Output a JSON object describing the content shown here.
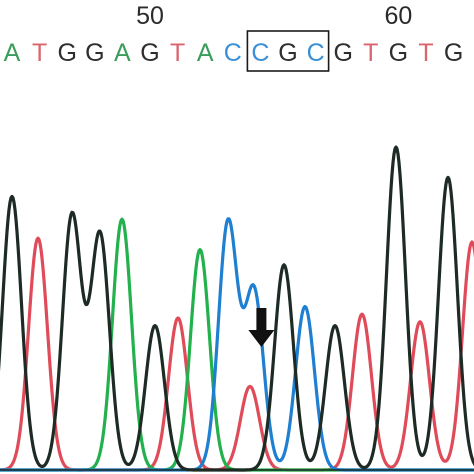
{
  "chart_data": {
    "type": "line",
    "position_labels": [
      {
        "label": "50",
        "base_index": 5
      },
      {
        "label": "60",
        "base_index": 14
      }
    ],
    "bases": [
      "A",
      "T",
      "G",
      "G",
      "A",
      "G",
      "T",
      "A",
      "C",
      "C",
      "G",
      "C",
      "G",
      "T",
      "G",
      "T",
      "G"
    ],
    "highlight": {
      "from_index": 9,
      "to_index": 11
    },
    "mutation_marker": {
      "symbol": "arrow-down",
      "base_index": 9
    },
    "peaks": [
      {
        "base": "G",
        "x": 12,
        "h": 0.72
      },
      {
        "base": "T",
        "x": 38,
        "h": 0.61
      },
      {
        "base": "G",
        "x": 72,
        "h": 0.67
      },
      {
        "base": "G",
        "x": 100,
        "h": 0.62
      },
      {
        "base": "A",
        "x": 122,
        "h": 0.66
      },
      {
        "base": "G",
        "x": 155,
        "h": 0.38
      },
      {
        "base": "T",
        "x": 178,
        "h": 0.4
      },
      {
        "base": "A",
        "x": 200,
        "h": 0.58
      },
      {
        "base": "C",
        "x": 228,
        "h": 0.65
      },
      {
        "base": "C",
        "x": 254,
        "h": 0.47
      },
      {
        "base": "T",
        "x": 250,
        "h": 0.22
      },
      {
        "base": "G",
        "x": 284,
        "h": 0.54
      },
      {
        "base": "C",
        "x": 305,
        "h": 0.43
      },
      {
        "base": "G",
        "x": 335,
        "h": 0.38
      },
      {
        "base": "T",
        "x": 362,
        "h": 0.41
      },
      {
        "base": "G",
        "x": 396,
        "h": 0.85
      },
      {
        "base": "T",
        "x": 420,
        "h": 0.39
      },
      {
        "base": "G",
        "x": 448,
        "h": 0.77
      },
      {
        "base": "T",
        "x": 472,
        "h": 0.6
      }
    ]
  },
  "base_colors": {
    "A": "#3a9e5a",
    "C": "#3a8fd6",
    "G": "#2e2e2e",
    "T": "#d9666e"
  },
  "trace_colors": {
    "A": "#22b14c",
    "C": "#1f7fd1",
    "G": "#1d2b24",
    "T": "#e04b5a"
  },
  "marker_icon": "arrow-down-icon"
}
